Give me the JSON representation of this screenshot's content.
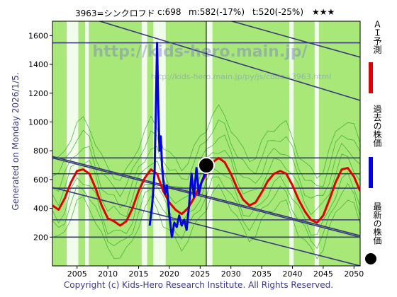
{
  "header": {
    "code": "3963=シンクロフド",
    "close": "c:698",
    "mid": "m:582(-17%)",
    "target": "t:520(-25%)",
    "stars": "★★★"
  },
  "side_note": "Generated on Monday 2026/1/5.",
  "footer": "Copyright (c) Kids-Hero Research Institute. All Rights Reserved.",
  "watermark": "http://kids-hero.main.jp/",
  "watermark_sub": "http://kids-hero.main.jp/py/js/code=3963.html",
  "legend": {
    "forecast": "ＡＩ予測",
    "past": "過去の株価",
    "latest": "最新の株価",
    "colors": {
      "forecast": "#e00000",
      "past": "#0000e0",
      "latest": "#000000"
    }
  },
  "chart_data": {
    "type": "line",
    "xlabel": "",
    "ylabel": "",
    "xlim": [
      2001,
      2051
    ],
    "ylim": [
      0,
      1700
    ],
    "x_ticks": [
      2005,
      2010,
      2015,
      2020,
      2025,
      2030,
      2035,
      2040,
      2045,
      2050
    ],
    "y_ticks": [
      200,
      400,
      600,
      800,
      1000,
      1200,
      1400,
      1600
    ],
    "background_bands": [
      {
        "from": 2003.3,
        "to": 2005.2,
        "color": "#ffffff"
      },
      {
        "from": 2006.3,
        "to": 2006.9,
        "color": "#ffffff"
      },
      {
        "from": 2015.5,
        "to": 2016.4,
        "color": "#ffffff"
      },
      {
        "from": 2017.4,
        "to": 2018.5,
        "color": "#ffffff"
      },
      {
        "from": 2018.5,
        "to": 2019.4,
        "color": "#ffffff"
      },
      {
        "from": 2026.0,
        "to": 2027.0,
        "color": "#ffffff"
      },
      {
        "from": 2039.5,
        "to": 2040.2,
        "color": "#ffffff"
      },
      {
        "from": 2043.6,
        "to": 2044.3,
        "color": "#ffffff"
      }
    ],
    "horizontal_lines": [
      200,
      320,
      540,
      640,
      750,
      1550
    ],
    "trend_lines": [
      {
        "x": [
          2001,
          2051
        ],
        "y": [
          750,
          200
        ]
      },
      {
        "x": [
          2001,
          2051
        ],
        "y": [
          545,
          0
        ]
      },
      {
        "x": [
          2001,
          2051
        ],
        "y": [
          1800,
          1150
        ]
      },
      {
        "x": [
          2001,
          2051
        ],
        "y": [
          2050,
          1450
        ]
      },
      {
        "x": [
          2001,
          2051
        ],
        "y": [
          760,
          210
        ]
      }
    ],
    "series": [
      {
        "name": "ＡＩ予測",
        "color": "#e00000",
        "x": [
          2001,
          2002,
          2003,
          2004,
          2005,
          2006,
          2007,
          2008,
          2009,
          2010,
          2011,
          2012,
          2013,
          2014,
          2015,
          2016,
          2017,
          2018,
          2019,
          2020,
          2021,
          2022,
          2023,
          2024,
          2025,
          2026,
          2027,
          2028,
          2029,
          2030,
          2031,
          2032,
          2033,
          2034,
          2035,
          2036,
          2037,
          2038,
          2039,
          2040,
          2041,
          2042,
          2043,
          2044,
          2045,
          2046,
          2047,
          2048,
          2049,
          2050,
          2051
        ],
        "y": [
          420,
          390,
          470,
          580,
          660,
          670,
          640,
          540,
          420,
          330,
          310,
          280,
          310,
          400,
          520,
          610,
          670,
          640,
          520,
          440,
          390,
          360,
          400,
          470,
          560,
          640,
          720,
          750,
          720,
          640,
          540,
          460,
          420,
          440,
          510,
          590,
          640,
          660,
          640,
          560,
          460,
          380,
          320,
          300,
          350,
          460,
          580,
          670,
          680,
          620,
          520
        ]
      },
      {
        "name": "過去の株価",
        "color": "#0000e0",
        "x": [
          2016.8,
          2017.2,
          2017.6,
          2018.0,
          2018.2,
          2018.4,
          2018.6,
          2018.8,
          2019.0,
          2019.3,
          2019.6,
          2020.0,
          2020.4,
          2020.8,
          2021.2,
          2021.6,
          2022.0,
          2022.4,
          2022.8,
          2023.2,
          2023.6,
          2024.0,
          2024.4,
          2024.8,
          2025.2,
          2025.6,
          2026.0
        ],
        "y": [
          280,
          420,
          650,
          1550,
          1100,
          800,
          900,
          700,
          600,
          500,
          560,
          350,
          200,
          300,
          270,
          350,
          280,
          320,
          250,
          420,
          640,
          480,
          680,
          500,
          580,
          620,
          698
        ]
      }
    ],
    "latest_point": {
      "x": 2026.0,
      "y": 698
    }
  }
}
